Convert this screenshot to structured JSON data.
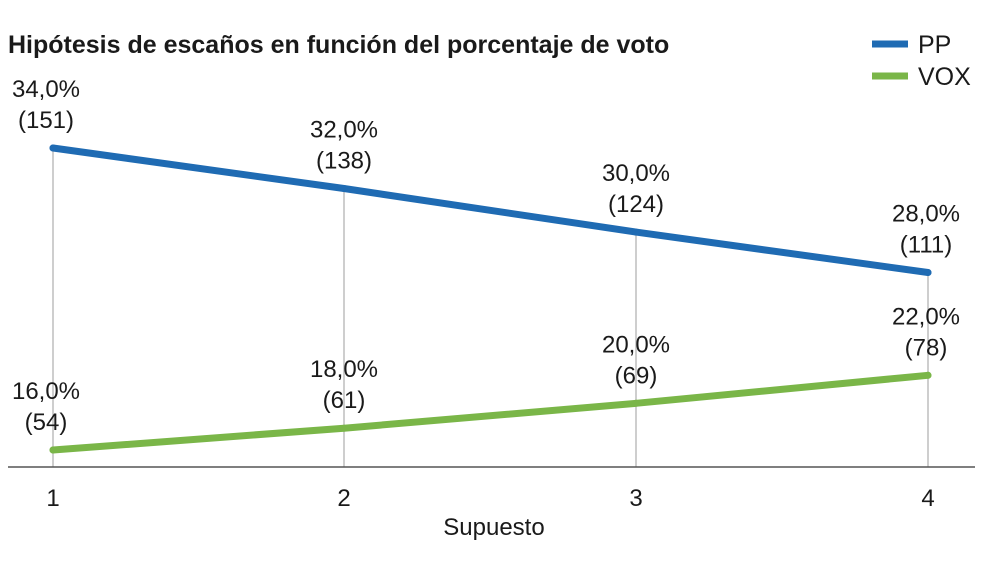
{
  "title": "Hipótesis de escaños en función del porcentaje de voto",
  "colors": {
    "pp": "#1f6bb3",
    "vox": "#7ab648",
    "grid": "#bdbdbd",
    "axis": "#555555"
  },
  "chart_data": {
    "type": "line",
    "title": "Hipótesis de escaños en función del porcentaje de voto",
    "xlabel": "Supuesto",
    "x": [
      "1",
      "2",
      "3",
      "4"
    ],
    "series": [
      {
        "name": "PP",
        "values": [
          151,
          138,
          124,
          111
        ],
        "percent_labels": [
          "34,0%",
          "32,0%",
          "30,0%",
          "28,0%"
        ],
        "seat_labels": [
          "(151)",
          "(138)",
          "(124)",
          "(111)"
        ]
      },
      {
        "name": "VOX",
        "values": [
          54,
          61,
          69,
          78
        ],
        "percent_labels": [
          "16,0%",
          "18,0%",
          "20,0%",
          "22,0%"
        ],
        "seat_labels": [
          "(54)",
          "(61)",
          "(69)",
          "(78)"
        ]
      }
    ],
    "legend": {
      "position": "top-right"
    },
    "grid": "vertical"
  }
}
